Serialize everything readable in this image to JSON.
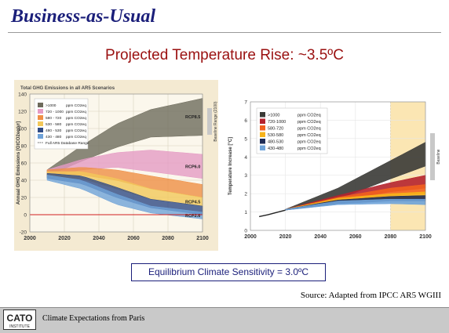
{
  "slide": {
    "title": "Business-as-Usual",
    "subtitle": "Projected Temperature Rise: ~3.5ºC",
    "ecs_box": "Equilibrium Climate Sensitivity = 3.0ºC",
    "source": "Source: Adapted from IPCC AR5 WGIII",
    "footer_text": "Climate Expectations from Paris",
    "logo_text": "CATO INSTITUTE"
  },
  "chart_data": [
    {
      "type": "area",
      "title": "Total GHG Emissions in all AR5 Scenarios",
      "ylabel": "Annual GHG Emissions [GtCO2eq/yr]",
      "xlabel": "",
      "xlim": [
        2000,
        2100
      ],
      "ylim": [
        -20,
        140
      ],
      "x_ticks": [
        "2000",
        "2020",
        "2040",
        "2060",
        "2080",
        "2100"
      ],
      "y_ticks": [
        "-20",
        "0",
        "20",
        "40",
        "60",
        "80",
        "100",
        "120",
        "140"
      ],
      "legend_placement": "top-left",
      "legend_unit": "ppm CO2eq",
      "legend_extra": "Full AR5 Database Range",
      "side_label": "Baseline Range (2100)",
      "series": [
        {
          "name": ">1000",
          "color": "#6e6b5c",
          "label": "RCP8.5",
          "x": [
            2010,
            2030,
            2050,
            2070,
            2100
          ],
          "low": [
            45,
            62,
            78,
            90,
            92
          ],
          "high": [
            52,
            80,
            105,
            122,
            135
          ]
        },
        {
          "name": "720 - 1000",
          "color": "#e59bc4",
          "label": "RCP6.0",
          "x": [
            2010,
            2030,
            2050,
            2070,
            2100
          ],
          "low": [
            45,
            52,
            55,
            50,
            42
          ],
          "high": [
            52,
            64,
            72,
            75,
            70
          ]
        },
        {
          "name": "580 - 720",
          "color": "#ef8f45",
          "x": [
            2010,
            2030,
            2050,
            2070,
            2100
          ],
          "low": [
            44,
            46,
            40,
            30,
            20
          ],
          "high": [
            52,
            55,
            52,
            45,
            35
          ]
        },
        {
          "name": "530 - 580",
          "color": "#f3c85a",
          "label": "RCP4.5",
          "x": [
            2010,
            2030,
            2050,
            2070,
            2100
          ],
          "low": [
            43,
            42,
            30,
            18,
            10
          ],
          "high": [
            50,
            50,
            42,
            30,
            20
          ]
        },
        {
          "name": "480 - 530",
          "color": "#2f4a84",
          "x": [
            2010,
            2030,
            2050,
            2070,
            2100
          ],
          "low": [
            42,
            36,
            20,
            8,
            0
          ],
          "high": [
            48,
            45,
            32,
            18,
            10
          ]
        },
        {
          "name": "430 - 480",
          "color": "#6fa2d8",
          "label": "RCP2.6",
          "x": [
            2010,
            2030,
            2050,
            2070,
            2100
          ],
          "low": [
            40,
            30,
            12,
            2,
            -5
          ],
          "high": [
            46,
            40,
            24,
            10,
            3
          ]
        }
      ]
    },
    {
      "type": "area",
      "title": "",
      "ylabel": "Temperature Increase [°C]",
      "xlabel": "",
      "xlim": [
        2000,
        2100
      ],
      "ylim": [
        0,
        7
      ],
      "x_ticks": [
        "2000",
        "2020",
        "2040",
        "2060",
        "2080",
        "2100"
      ],
      "y_ticks": [
        "0",
        "1",
        "2",
        "3",
        "4",
        "5",
        "6",
        "7"
      ],
      "legend_placement": "top-left",
      "legend_unit": "ppm CO2eq",
      "side_label": "Baseline",
      "highlight_range": [
        2080,
        2100
      ],
      "history": {
        "x": [
          2005,
          2010,
          2020
        ],
        "y": [
          0.75,
          0.85,
          1.1
        ]
      },
      "series": [
        {
          "name": ">1000",
          "color": "#3a3a36",
          "x": [
            2020,
            2050,
            2080,
            2100
          ],
          "low": [
            1.1,
            1.7,
            2.8,
            3.5
          ],
          "high": [
            1.15,
            2.3,
            3.8,
            4.8
          ]
        },
        {
          "name": "720-1000",
          "color": "#b5232e",
          "x": [
            2020,
            2050,
            2080,
            2100
          ],
          "low": [
            1.1,
            1.6,
            2.1,
            2.3
          ],
          "high": [
            1.15,
            1.9,
            2.6,
            3.0
          ]
        },
        {
          "name": "580-720",
          "color": "#f2621e",
          "x": [
            2020,
            2050,
            2080,
            2100
          ],
          "low": [
            1.1,
            1.5,
            1.9,
            2.0
          ],
          "high": [
            1.15,
            1.8,
            2.3,
            2.5
          ]
        },
        {
          "name": "530-580",
          "color": "#f7b31a",
          "x": [
            2020,
            2050,
            2080,
            2100
          ],
          "low": [
            1.1,
            1.5,
            1.7,
            1.75
          ],
          "high": [
            1.15,
            1.75,
            2.0,
            2.1
          ]
        },
        {
          "name": "480-530",
          "color": "#1f2d57",
          "x": [
            2020,
            2050,
            2080,
            2100
          ],
          "low": [
            1.1,
            1.45,
            1.6,
            1.6
          ],
          "high": [
            1.15,
            1.65,
            1.85,
            1.9
          ]
        },
        {
          "name": "430-480",
          "color": "#6ea3d9",
          "x": [
            2020,
            2050,
            2080,
            2100
          ],
          "low": [
            1.1,
            1.4,
            1.45,
            1.4
          ],
          "high": [
            1.15,
            1.6,
            1.7,
            1.7
          ]
        }
      ]
    }
  ]
}
